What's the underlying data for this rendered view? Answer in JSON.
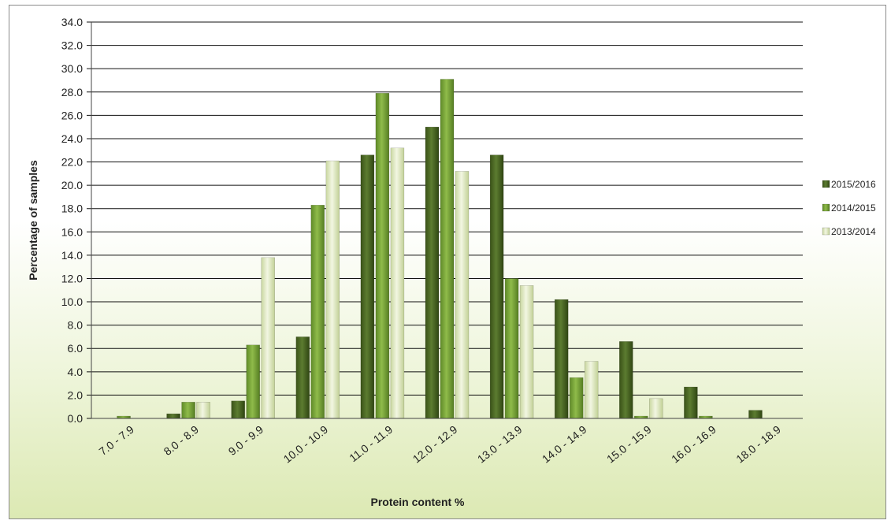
{
  "chart_data": {
    "type": "bar",
    "xlabel": "Protein content %",
    "ylabel": "Percentage of samples",
    "ylim": [
      0,
      34
    ],
    "ytick_step": 2,
    "ytick_labels": [
      "0.0",
      "2.0",
      "4.0",
      "6.0",
      "8.0",
      "10.0",
      "12.0",
      "14.0",
      "16.0",
      "18.0",
      "20.0",
      "22.0",
      "24.0",
      "26.0",
      "28.0",
      "30.0",
      "32.0",
      "34.0"
    ],
    "grid": true,
    "legend_position": "right",
    "categories": [
      "7.0 - 7.9",
      "8.0 - 8.9",
      "9.0 - 9.9",
      "10.0 - 10.9",
      "11.0 - 11.9",
      "12.0 - 12.9",
      "13.0 - 13.9",
      "14.0 - 14.9",
      "15.0 - 15.9",
      "16.0 - 16.9",
      "18.0 - 18.9"
    ],
    "series": [
      {
        "name": "2015/2016",
        "color": "#4e6b27",
        "values": [
          0.0,
          0.4,
          1.5,
          7.0,
          22.6,
          25.0,
          22.6,
          10.2,
          6.6,
          2.7,
          0.7
        ]
      },
      {
        "name": "2014/2015",
        "color": "#78a33a",
        "values": [
          0.2,
          1.4,
          6.3,
          18.3,
          27.9,
          29.1,
          12.0,
          3.5,
          0.2,
          0.2,
          0.0
        ]
      },
      {
        "name": "2013/2014",
        "color": "#dfe8bd",
        "values": [
          0.0,
          1.4,
          13.8,
          22.1,
          23.2,
          21.2,
          11.4,
          4.9,
          1.7,
          0.0,
          0.0
        ]
      }
    ]
  }
}
